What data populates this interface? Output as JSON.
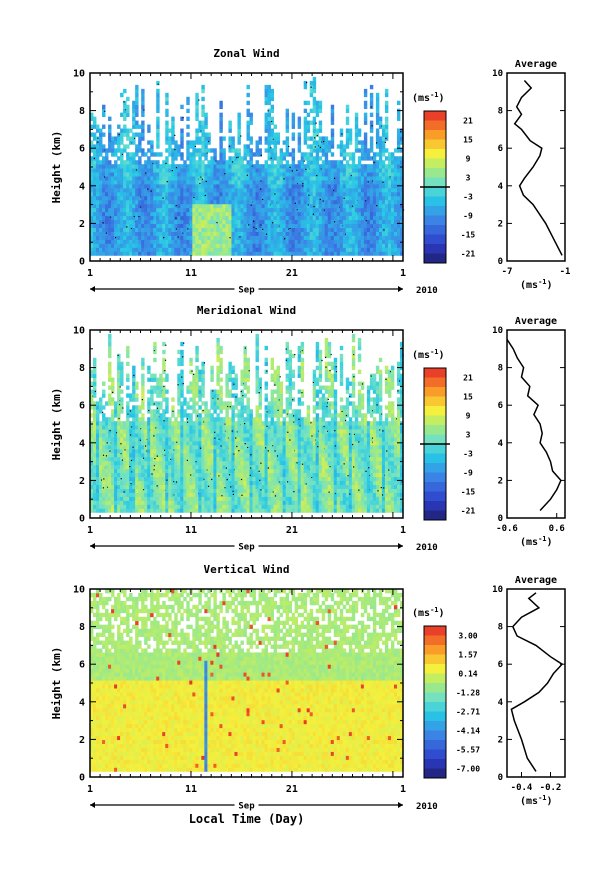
{
  "figure": {
    "x_axis_title": "Local Time (Day)",
    "month_label": "Sep",
    "year_label": "2010",
    "x_tick_labels": [
      "1",
      "11",
      "21",
      "1"
    ],
    "y_label": "Height (km)",
    "unit_label": "(ms",
    "unit_exponent": "-1",
    "avg_title": "Average",
    "avg_unit_label": "(ms",
    "avg_unit_exponent": "-1"
  },
  "chart_data": [
    {
      "type": "heatmap",
      "title": "Zonal Wind",
      "xlabel": "",
      "ylabel": "Height (km)",
      "x_range_days": [
        1,
        31
      ],
      "ylim": [
        0,
        10
      ],
      "y_ticks": [
        "0",
        "2",
        "4",
        "6",
        "8",
        "10"
      ],
      "x_tick_labels": [
        "1",
        "11",
        "21",
        "1"
      ],
      "colorbar": {
        "unit": "(ms-1)",
        "tick_labels": [
          "21",
          "15",
          "9",
          "3",
          "-3",
          "-9",
          "-15",
          "-21"
        ],
        "range": [
          -24,
          24
        ],
        "zero_line": true
      },
      "average_profile": {
        "title": "Average",
        "xlabel": "(ms-1)",
        "xlim": [
          -7,
          -1
        ],
        "x_tick_labels": [
          "-7",
          "-1"
        ],
        "height_km": [
          0.3,
          1.0,
          2.0,
          3.0,
          3.5,
          4.0,
          4.4,
          5.0,
          5.6,
          6.0,
          6.4,
          7.0,
          7.3,
          7.8,
          8.2,
          8.7,
          9.2,
          9.6
        ],
        "values": [
          -1.3,
          -2.0,
          -3.0,
          -4.3,
          -5.3,
          -5.7,
          -5.2,
          -4.3,
          -3.6,
          -3.4,
          -4.6,
          -5.5,
          -6.2,
          -5.5,
          -6.0,
          -5.5,
          -4.5,
          -5.2
        ]
      }
    },
    {
      "type": "heatmap",
      "title": "Meridional Wind",
      "xlabel": "",
      "ylabel": "Height (km)",
      "x_range_days": [
        1,
        31
      ],
      "ylim": [
        0,
        10
      ],
      "y_ticks": [
        "0",
        "2",
        "4",
        "6",
        "8",
        "10"
      ],
      "x_tick_labels": [
        "1",
        "11",
        "21",
        "1"
      ],
      "colorbar": {
        "unit": "(ms-1)",
        "tick_labels": [
          "21",
          "15",
          "9",
          "3",
          "-3",
          "-9",
          "-15",
          "-21"
        ],
        "range": [
          -24,
          24
        ],
        "zero_line": true
      },
      "average_profile": {
        "title": "Average",
        "xlabel": "(ms-1)",
        "xlim": [
          -0.6,
          0.8
        ],
        "x_tick_labels": [
          "-0.6",
          "0.6"
        ],
        "height_km": [
          0.4,
          1.0,
          1.5,
          2.0,
          2.5,
          3.0,
          3.5,
          4.0,
          4.5,
          5.0,
          5.5,
          6.0,
          6.5,
          7.0,
          7.5,
          8.0,
          8.5,
          9.0,
          9.5
        ],
        "values": [
          0.2,
          0.45,
          0.6,
          0.7,
          0.5,
          0.45,
          0.35,
          0.2,
          0.25,
          0.2,
          0.05,
          0.15,
          -0.1,
          -0.05,
          -0.25,
          -0.2,
          -0.35,
          -0.45,
          -0.6
        ]
      }
    },
    {
      "type": "heatmap",
      "title": "Vertical Wind",
      "xlabel": "Local Time (Day)",
      "ylabel": "Height (km)",
      "x_range_days": [
        1,
        31
      ],
      "ylim": [
        0,
        10
      ],
      "y_ticks": [
        "0",
        "2",
        "4",
        "6",
        "8",
        "10"
      ],
      "x_tick_labels": [
        "1",
        "11",
        "21",
        "1"
      ],
      "colorbar": {
        "unit": "(ms-1)",
        "tick_labels": [
          "3.00",
          "1.57",
          "0.14",
          "-1.28",
          "-2.71",
          "-4.14",
          "-5.57",
          "-7.00"
        ],
        "range": [
          -8,
          4
        ]
      },
      "average_profile": {
        "title": "Average",
        "xlabel": "(ms-1)",
        "xlim": [
          -0.5,
          -0.1
        ],
        "x_tick_labels": [
          "-0.4",
          "-0.2"
        ],
        "height_km": [
          0.3,
          1.0,
          2.0,
          3.0,
          3.6,
          4.0,
          4.5,
          5.0,
          5.5,
          6.0,
          6.4,
          7.0,
          7.5,
          8.0,
          8.5,
          9.0,
          9.5,
          9.8
        ],
        "values": [
          -0.3,
          -0.36,
          -0.4,
          -0.45,
          -0.47,
          -0.38,
          -0.28,
          -0.22,
          -0.18,
          -0.12,
          -0.2,
          -0.3,
          -0.43,
          -0.46,
          -0.4,
          -0.28,
          -0.35,
          -0.3
        ]
      }
    }
  ]
}
